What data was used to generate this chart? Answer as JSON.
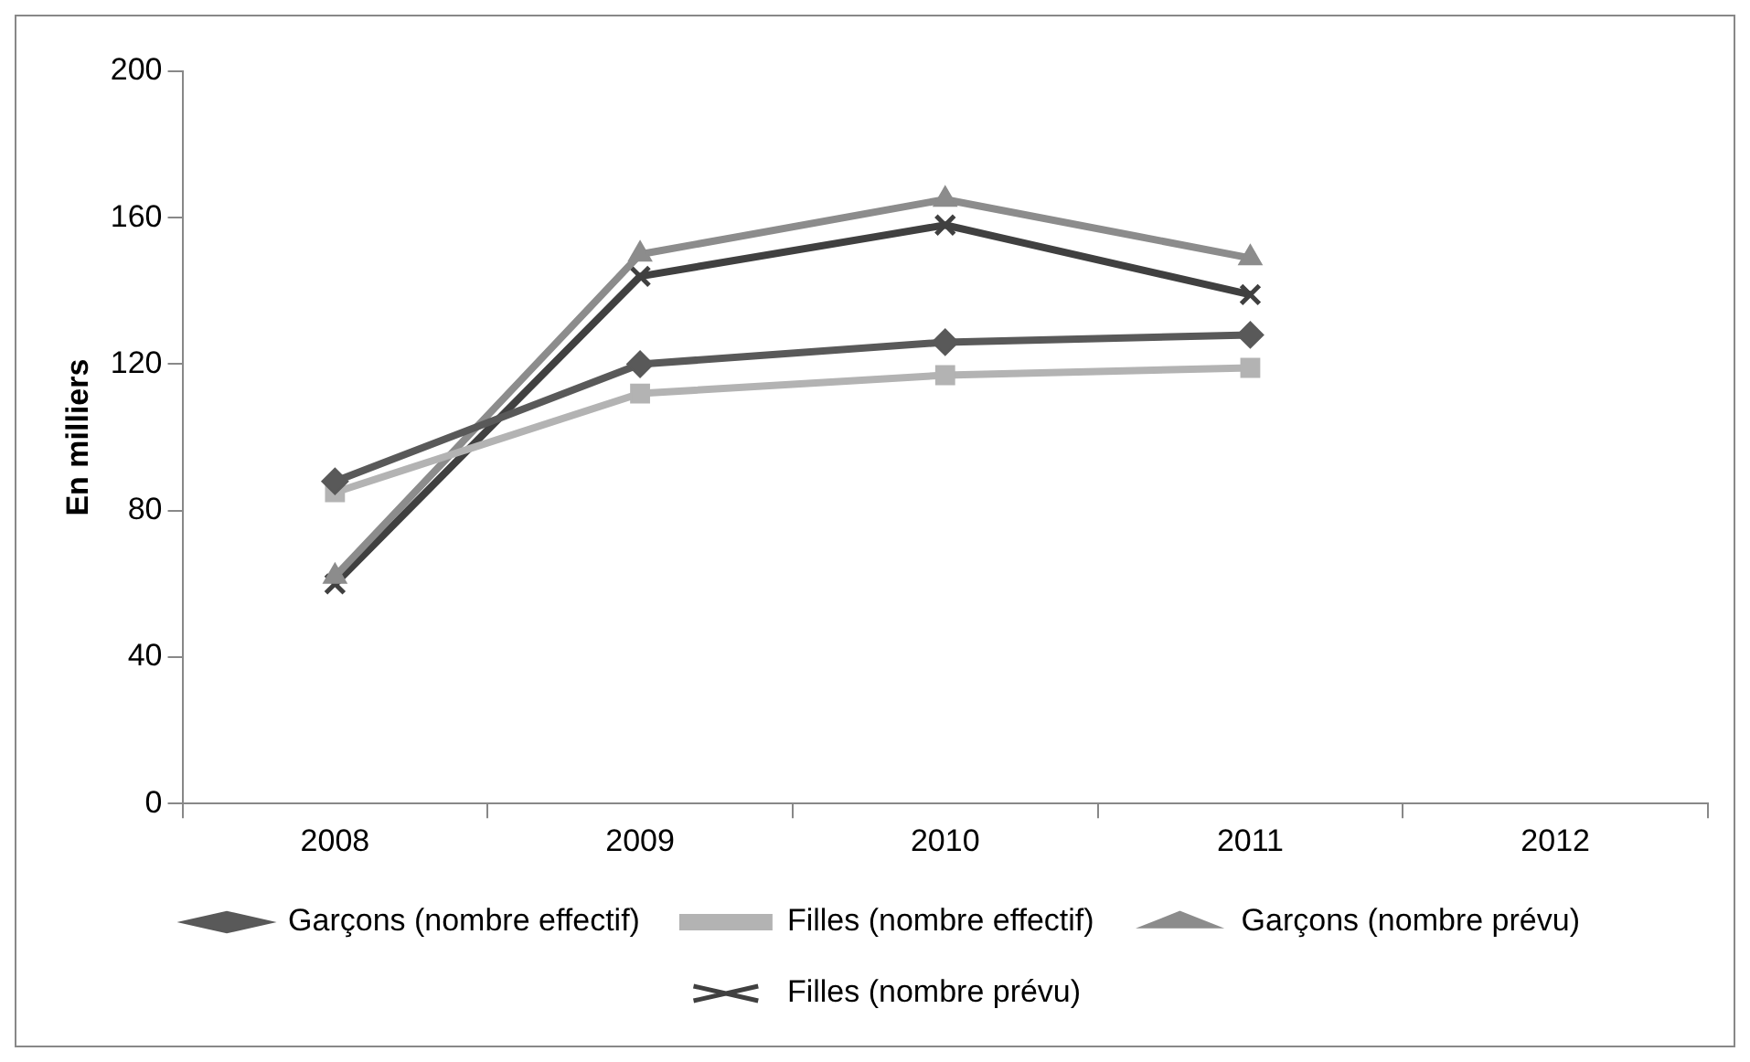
{
  "chart_data": {
    "type": "line",
    "ylabel": "En milliers",
    "categories": [
      "2008",
      "2009",
      "2010",
      "2011",
      "2012"
    ],
    "series": [
      {
        "name": "Garçons (nombre effectif)",
        "color": "#595959",
        "marker": "diamond",
        "values": [
          88,
          120,
          126,
          128,
          null
        ]
      },
      {
        "name": "Filles (nombre effectif)",
        "color": "#b3b3b3",
        "marker": "square",
        "values": [
          85,
          112,
          117,
          119,
          null
        ]
      },
      {
        "name": "Garçons (nombre prévu)",
        "color": "#8c8c8c",
        "marker": "triangle",
        "values": [
          62,
          150,
          165,
          149,
          null
        ]
      },
      {
        "name": "Filles (nombre prévu)",
        "color": "#404040",
        "marker": "cross",
        "values": [
          60,
          144,
          158,
          139,
          null
        ]
      }
    ],
    "ylim": [
      0,
      200
    ],
    "yticks": [
      0,
      40,
      80,
      120,
      160,
      200
    ],
    "grid": false,
    "legend": "bottom",
    "line_style": "solid"
  }
}
